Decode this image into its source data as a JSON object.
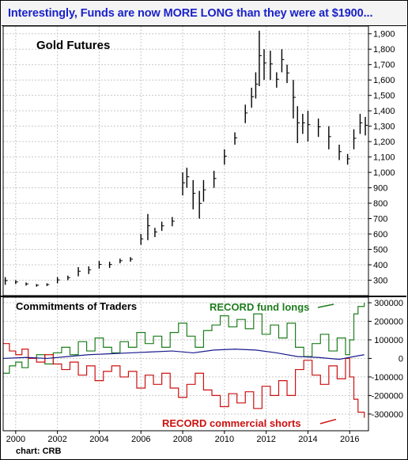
{
  "headline": "Interestingly, Funds are now MORE LONG than they were at $1900...",
  "credit": "chart: CRB",
  "colors": {
    "headline": "#1a22c8",
    "price_bars": "#000000",
    "fund_longs": "#1e7d1e",
    "commercial_shorts": "#cc1111",
    "third_series": "#1a1a8c",
    "grid": "#c8c8c8"
  },
  "chart_data": [
    {
      "type": "bar",
      "style": "monthly high-low price bars",
      "title": "Gold Futures",
      "ylim": [
        200,
        1950
      ],
      "y_ticks": [
        300,
        400,
        500,
        600,
        700,
        800,
        900,
        1000,
        1100,
        1200,
        1300,
        1400,
        1500,
        1600,
        1700,
        1800,
        1900
      ],
      "y_tick_labels": [
        "300",
        "400",
        "500",
        "600",
        "700",
        "800",
        "900",
        "1,000",
        "1,100",
        "1,200",
        "1,300",
        "1,400",
        "1,500",
        "1,600",
        "1,700",
        "1,800",
        "1,900"
      ],
      "x_ticks": [
        2000,
        2002,
        2004,
        2006,
        2008,
        2010,
        2012,
        2014,
        2016
      ],
      "x_tick_labels": [
        "2000",
        "2002",
        "2004",
        "2006",
        "2008",
        "2010",
        "2012",
        "2014",
        "2016"
      ],
      "xlim": [
        1999.4,
        2016.9
      ],
      "grid": true,
      "series": [
        {
          "x": [
            1999.5,
            2000.0,
            2000.5,
            2001.0,
            2001.5,
            2002.0,
            2002.5,
            2003.0,
            2003.5,
            2004.0,
            2004.5,
            2005.0,
            2005.5,
            2006.0,
            2006.33,
            2006.67,
            2007.0,
            2007.5,
            2008.0,
            2008.2,
            2008.5,
            2008.8,
            2009.0,
            2009.5,
            2010.0,
            2010.5,
            2011.0,
            2011.3,
            2011.5,
            2011.67,
            2011.9,
            2012.2,
            2012.5,
            2012.75,
            2013.0,
            2013.3,
            2013.5,
            2013.75,
            2014.0,
            2014.5,
            2015.0,
            2015.5,
            2015.9,
            2016.2,
            2016.5,
            2016.75
          ],
          "low": [
            270,
            275,
            265,
            258,
            262,
            280,
            300,
            325,
            340,
            375,
            380,
            410,
            420,
            530,
            560,
            580,
            620,
            650,
            850,
            900,
            760,
            700,
            810,
            900,
            1050,
            1180,
            1320,
            1420,
            1480,
            1560,
            1600,
            1600,
            1550,
            1650,
            1580,
            1350,
            1190,
            1250,
            1200,
            1230,
            1150,
            1080,
            1050,
            1150,
            1250,
            1240
          ],
          "high": [
            320,
            300,
            285,
            275,
            280,
            320,
            330,
            385,
            390,
            425,
            420,
            440,
            450,
            600,
            730,
            640,
            680,
            710,
            1000,
            1030,
            950,
            880,
            950,
            1010,
            1150,
            1260,
            1440,
            1550,
            1650,
            1920,
            1800,
            1790,
            1650,
            1800,
            1700,
            1600,
            1430,
            1380,
            1400,
            1350,
            1300,
            1180,
            1120,
            1280,
            1380,
            1360
          ]
        }
      ]
    },
    {
      "type": "line",
      "title": "Commitments of Traders",
      "ylim": [
        -390000,
        330000
      ],
      "y_ticks": [
        300000,
        200000,
        100000,
        0,
        -100000,
        -200000,
        -300000
      ],
      "y_tick_labels": [
        "300000",
        "200000",
        "100000",
        "0",
        "-100000",
        "-200000",
        "-300000"
      ],
      "x_ticks": [
        2000,
        2002,
        2004,
        2006,
        2008,
        2010,
        2012,
        2014,
        2016
      ],
      "x_tick_labels": [
        "2000",
        "2002",
        "2004",
        "2006",
        "2008",
        "2010",
        "2012",
        "2014",
        "2016"
      ],
      "xlim": [
        1999.4,
        2016.9
      ],
      "grid": true,
      "annotations": [
        {
          "text": "RECORD fund longs",
          "series": "fund longs"
        },
        {
          "text": "RECORD commercial shorts",
          "series": "commercial shorts"
        }
      ],
      "series": [
        {
          "key": "fund longs",
          "style": "step",
          "x": [
            1999.4,
            1999.7,
            2000.0,
            2000.3,
            2000.6,
            2001.0,
            2001.4,
            2001.8,
            2002.2,
            2002.6,
            2003.0,
            2003.4,
            2003.8,
            2004.2,
            2004.6,
            2005.0,
            2005.4,
            2005.8,
            2006.2,
            2006.6,
            2007.0,
            2007.4,
            2007.8,
            2008.2,
            2008.6,
            2009.0,
            2009.4,
            2009.8,
            2010.2,
            2010.6,
            2011.0,
            2011.4,
            2011.8,
            2012.2,
            2012.6,
            2013.0,
            2013.4,
            2013.8,
            2014.2,
            2014.6,
            2015.0,
            2015.4,
            2015.8,
            2016.0,
            2016.2,
            2016.4,
            2016.7
          ],
          "values": [
            -80000,
            -40000,
            -20000,
            -50000,
            0,
            20000,
            -30000,
            30000,
            60000,
            20000,
            90000,
            40000,
            110000,
            60000,
            30000,
            90000,
            60000,
            140000,
            80000,
            120000,
            60000,
            140000,
            190000,
            120000,
            60000,
            150000,
            180000,
            230000,
            170000,
            210000,
            160000,
            240000,
            130000,
            180000,
            110000,
            190000,
            60000,
            10000,
            80000,
            130000,
            40000,
            110000,
            20000,
            100000,
            240000,
            280000,
            300000
          ]
        },
        {
          "key": "commercial shorts",
          "style": "step",
          "x": [
            1999.4,
            1999.7,
            2000.0,
            2000.3,
            2000.6,
            2001.0,
            2001.4,
            2001.8,
            2002.2,
            2002.6,
            2003.0,
            2003.4,
            2003.8,
            2004.2,
            2004.6,
            2005.0,
            2005.4,
            2005.8,
            2006.2,
            2006.6,
            2007.0,
            2007.4,
            2007.8,
            2008.2,
            2008.6,
            2009.0,
            2009.4,
            2009.8,
            2010.2,
            2010.6,
            2011.0,
            2011.4,
            2011.8,
            2012.2,
            2012.6,
            2013.0,
            2013.4,
            2013.8,
            2014.2,
            2014.6,
            2015.0,
            2015.4,
            2015.8,
            2016.0,
            2016.2,
            2016.4,
            2016.7
          ],
          "values": [
            80000,
            40000,
            20000,
            50000,
            0,
            -20000,
            20000,
            -30000,
            -60000,
            -20000,
            -90000,
            -40000,
            -120000,
            -70000,
            -40000,
            -100000,
            -70000,
            -160000,
            -90000,
            -140000,
            -80000,
            -160000,
            -210000,
            -140000,
            -80000,
            -170000,
            -200000,
            -260000,
            -190000,
            -240000,
            -180000,
            -270000,
            -150000,
            -200000,
            -120000,
            -200000,
            -60000,
            -10000,
            -90000,
            -140000,
            -40000,
            -110000,
            0,
            -100000,
            -220000,
            -290000,
            -320000
          ]
        },
        {
          "key": "third",
          "style": "line",
          "x": [
            1999.4,
            2000.5,
            2001.5,
            2002.5,
            2003.5,
            2004.5,
            2005.5,
            2006.5,
            2007.5,
            2008.5,
            2009.5,
            2010.5,
            2011.5,
            2012.5,
            2013.5,
            2014.5,
            2015.5,
            2016.2,
            2016.7
          ],
          "values": [
            0,
            5000,
            0,
            10000,
            20000,
            25000,
            30000,
            35000,
            40000,
            30000,
            45000,
            50000,
            45000,
            30000,
            10000,
            5000,
            -5000,
            10000,
            20000
          ]
        }
      ]
    }
  ]
}
